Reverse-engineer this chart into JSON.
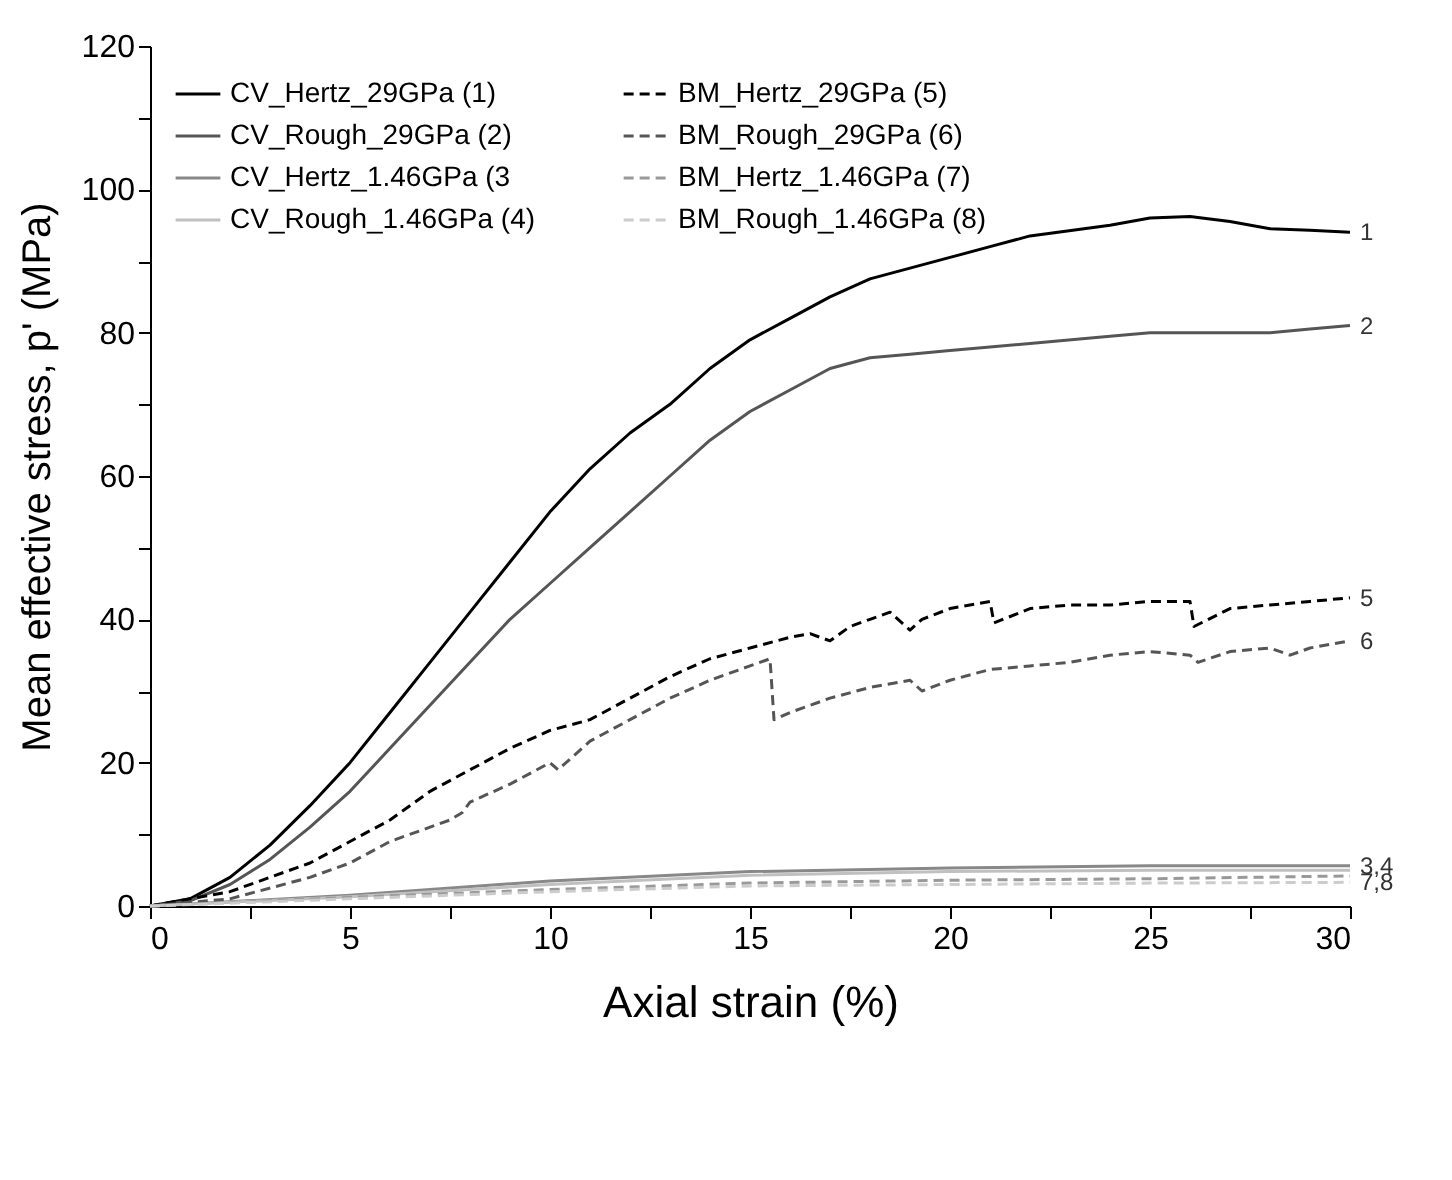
{
  "chart_data": {
    "type": "line",
    "xlabel": "Axial strain (%)",
    "ylabel": "Mean effective stress, p' (MPa)",
    "xlim": [
      0,
      30
    ],
    "ylim": [
      0,
      120
    ],
    "xticks": [
      0,
      {
        "value": 2.5,
        "label": null
      },
      5,
      {
        "value": 7.5,
        "label": null
      },
      10,
      {
        "value": 12.5,
        "label": null
      },
      15,
      {
        "value": 17.5,
        "label": null
      },
      20,
      {
        "value": 22.5,
        "label": null
      },
      25,
      {
        "value": 27.5,
        "label": null
      },
      30
    ],
    "yticks": [
      0,
      {
        "value": 10,
        "label": null
      },
      20,
      {
        "value": 30,
        "label": null
      },
      40,
      {
        "value": 50,
        "label": null
      },
      60,
      {
        "value": 70,
        "label": null
      },
      80,
      {
        "value": 90,
        "label": null
      },
      100,
      {
        "value": 110,
        "label": null
      },
      120
    ],
    "grid": false,
    "legend": "top left",
    "marker": "none",
    "series": [
      {
        "name": "CV_Hertz_29GPa (1)",
        "color": "#000000",
        "line_style": "solid",
        "x": [
          0,
          1,
          2,
          3,
          4,
          5,
          6,
          7,
          8,
          9,
          10,
          11,
          12,
          13,
          14,
          15,
          16,
          17,
          18,
          19,
          20,
          21,
          22,
          24,
          25,
          26,
          27,
          28,
          29,
          30
        ],
        "values": [
          0,
          1,
          4,
          8.5,
          14,
          20,
          27,
          34,
          41,
          48,
          55,
          61,
          66,
          70,
          75,
          79,
          82,
          85,
          87.5,
          89,
          90.5,
          92,
          93.5,
          95,
          96,
          96.2,
          95.5,
          94.5,
          94.3,
          94
        ]
      },
      {
        "name": "CV_Rough_29GPa (2)",
        "color": "#555555",
        "line_style": "solid",
        "x": [
          0,
          1,
          2,
          3,
          4,
          5,
          6,
          7,
          8,
          9,
          10,
          11,
          12,
          13,
          14,
          15,
          16,
          17,
          18,
          19,
          20,
          21,
          22,
          24,
          25,
          26,
          28,
          29,
          30
        ],
        "values": [
          0,
          0.7,
          3,
          6.5,
          11,
          16,
          22,
          28,
          34,
          40,
          45,
          50,
          55,
          60,
          65,
          69,
          72,
          75,
          76.5,
          77,
          77.5,
          78,
          78.5,
          79.5,
          80,
          80,
          80,
          80.5,
          81
        ]
      },
      {
        "name": "CV_Hertz_1.46GPa (3",
        "color": "#888888",
        "line_style": "solid",
        "x": [
          0,
          5,
          10,
          15,
          20,
          25,
          30
        ],
        "values": [
          0,
          1.5,
          3.5,
          4.8,
          5.3,
          5.6,
          5.6
        ]
      },
      {
        "name": "CV_Rough_1.46GPa (4)",
        "color": "#c0c0c0",
        "line_style": "solid",
        "x": [
          0,
          5,
          10,
          15,
          20,
          25,
          30
        ],
        "values": [
          0,
          1.3,
          3,
          4.3,
          4.8,
          5,
          5
        ]
      },
      {
        "name": "BM_Hertz_29GPa (5)",
        "color": "#000000",
        "line_style": "dashed",
        "x": [
          0,
          2,
          4,
          5,
          6,
          7,
          8,
          9,
          10,
          11,
          12,
          13,
          14,
          15,
          16,
          16.5,
          17,
          17.5,
          18,
          18.5,
          19,
          19.3,
          20,
          21,
          21.1,
          22,
          23,
          24,
          25,
          26,
          26.1,
          27,
          28,
          29,
          30
        ],
        "values": [
          0,
          2,
          6,
          9,
          12,
          16,
          19,
          22,
          24.5,
          26,
          29,
          32,
          34.5,
          36,
          37.5,
          38,
          37,
          39,
          40,
          41,
          38.5,
          40,
          41.5,
          42.5,
          39.5,
          41.5,
          42,
          42,
          42.5,
          42.5,
          39,
          41.5,
          42,
          42.5,
          43
        ]
      },
      {
        "name": "BM_Rough_29GPa (6)",
        "color": "#555555",
        "line_style": "dashed",
        "x": [
          0,
          2,
          4,
          5,
          6,
          7,
          7.5,
          7.8,
          8,
          9,
          10,
          10.2,
          11,
          12,
          13,
          14,
          15,
          15.5,
          15.6,
          16,
          17,
          18,
          19,
          19.3,
          20,
          21,
          22,
          23,
          24,
          25,
          26,
          26.2,
          27,
          28,
          28.5,
          29,
          30
        ],
        "values": [
          0,
          1,
          4,
          6,
          9,
          11,
          12,
          13,
          14.5,
          17,
          20,
          19,
          23,
          26,
          29,
          31.5,
          33.5,
          34.5,
          26,
          27,
          29,
          30.5,
          31.5,
          30,
          31.5,
          33,
          33.5,
          34,
          35,
          35.5,
          35,
          34,
          35.5,
          36,
          35,
          36,
          37
        ]
      },
      {
        "name": "BM_Hertz_1.46GPa (7)",
        "color": "#999999",
        "line_style": "dashed",
        "x": [
          0,
          5,
          10,
          15,
          20,
          25,
          30
        ],
        "values": [
          0,
          1.2,
          2.3,
          3.2,
          3.6,
          3.8,
          4.2
        ]
      },
      {
        "name": "BM_Rough_1.46GPa (8)",
        "color": "#cccccc",
        "line_style": "dashed",
        "x": [
          0,
          5,
          10,
          15,
          20,
          25,
          30
        ],
        "values": [
          0,
          1,
          2,
          2.8,
          3,
          3.2,
          3.3
        ]
      }
    ],
    "annotations": [
      "1",
      "2",
      "5",
      "6",
      "3,4",
      "7,8"
    ]
  }
}
